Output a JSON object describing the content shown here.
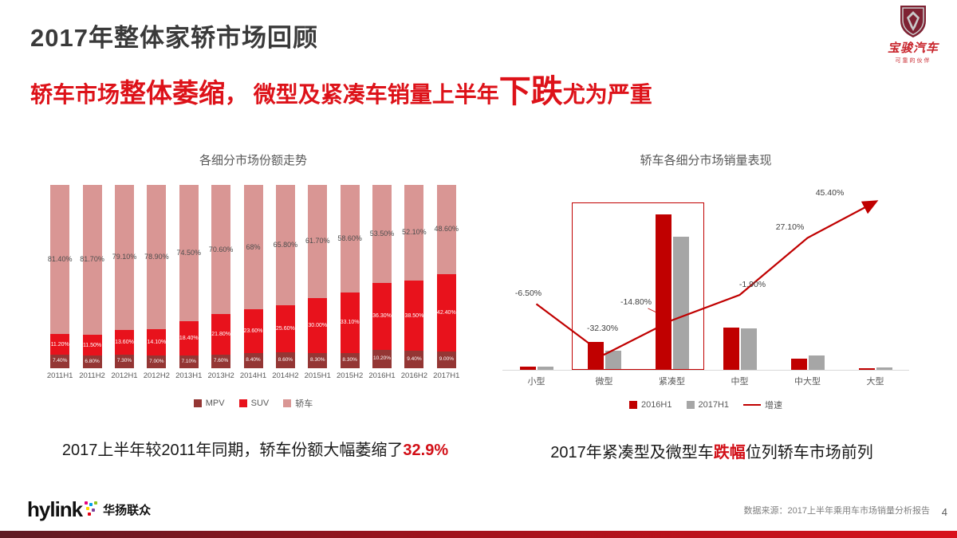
{
  "slide": {
    "title": "2017年整体家轿市场回顾",
    "subtitle": {
      "part1": "轿车市场",
      "part2": "整体萎缩",
      "part3": "， 微型及紧凑车销量上半年",
      "part4": "下跌",
      "part5": "尤为严重"
    },
    "logo": {
      "brand": "宝骏汽车",
      "slogan": "可靠的伙伴"
    },
    "captions": {
      "left_prefix": "2017上半年较2011年同期，轿车份额大幅萎缩了",
      "left_highlight": "32.9%",
      "right_prefix": "2017年紧凑型及微型车",
      "right_highlight": "跌幅",
      "right_suffix": "位列轿车市场前列"
    },
    "footer": {
      "hylink": "hylink",
      "hylink_cn": "华扬联众",
      "source": "数据来源：2017上半年乘用车市场销量分析报告",
      "page": "4"
    }
  },
  "chart_data": [
    {
      "type": "bar",
      "variant": "stacked-100pct",
      "title": "各细分市场份额走势",
      "categories": [
        "2011H1",
        "2011H2",
        "2012H1",
        "2012H2",
        "2013H1",
        "2013H2",
        "2014H1",
        "2014H2",
        "2015H1",
        "2015H2",
        "2016H1",
        "2016H2",
        "2017H1"
      ],
      "series": [
        {
          "name": "MPV",
          "color": "#943634",
          "values": [
            7.4,
            6.8,
            7.3,
            7.0,
            7.1,
            7.6,
            8.4,
            8.6,
            8.3,
            8.3,
            10.2,
            9.4,
            9.0
          ],
          "labels": [
            "7.40%",
            "6.80%",
            "7.30%",
            "7.00%",
            "7.10%",
            "7.60%",
            "8.40%",
            "8.60%",
            "8.30%",
            "8.30%",
            "10.20%",
            "9.40%",
            "9.00%"
          ]
        },
        {
          "name": "SUV",
          "color": "#e8121c",
          "values": [
            11.2,
            11.5,
            13.6,
            14.1,
            18.4,
            21.8,
            23.6,
            25.6,
            30.0,
            33.1,
            36.3,
            38.5,
            42.4
          ],
          "labels": [
            "11.20%",
            "11.50%",
            "13.60%",
            "14.10%",
            "18.40%",
            "21.80%",
            "23.60%",
            "25.60%",
            "30.00%",
            "33.10%",
            "36.30%",
            "38.50%",
            "42.40%"
          ]
        },
        {
          "name": "轿车",
          "color": "#d99694",
          "values": [
            81.4,
            81.7,
            79.1,
            78.9,
            74.5,
            70.6,
            68.0,
            65.8,
            61.7,
            58.6,
            53.5,
            52.1,
            48.6
          ],
          "labels": [
            "81.40%",
            "81.70%",
            "79.10%",
            "78.90%",
            "74.50%",
            "70.60%",
            "68%",
            "65.80%",
            "61.70%",
            "58.60%",
            "53.50%",
            "52.10%",
            "48.60%"
          ]
        }
      ],
      "ylim": [
        0,
        100
      ],
      "grid": false,
      "axes_hidden": true,
      "legend_position": "bottom"
    },
    {
      "type": "bar",
      "variant": "grouped-with-line",
      "title": "轿车各细分市场销量表现",
      "categories": [
        "小型",
        "微型",
        "紧凑型",
        "中型",
        "中大型",
        "大型"
      ],
      "series": [
        {
          "name": "2016H1",
          "color": "#c00000",
          "values": [
            9,
            76,
            420,
            114,
            30,
            4
          ]
        },
        {
          "name": "2017H1",
          "color": "#a6a6a6",
          "values": [
            8.4,
            51.5,
            360,
            111.8,
            38,
            6
          ]
        }
      ],
      "series_note": "sales volume, relative scale (value axis hidden in original)",
      "line_series": {
        "name": "增速",
        "color": "#c00000",
        "values": [
          -6.5,
          -32.3,
          -14.8,
          -1.9,
          27.1,
          45.4
        ],
        "labels": [
          "-6.50%",
          "-32.30%",
          "-14.80%",
          "-1.90%",
          "27.10%",
          "45.40%"
        ],
        "axis_range": [
          -40,
          50
        ]
      },
      "highlight_box_categories": [
        "微型",
        "紧凑型"
      ],
      "grid": false,
      "value_axis_hidden": true,
      "legend_position": "bottom"
    }
  ]
}
